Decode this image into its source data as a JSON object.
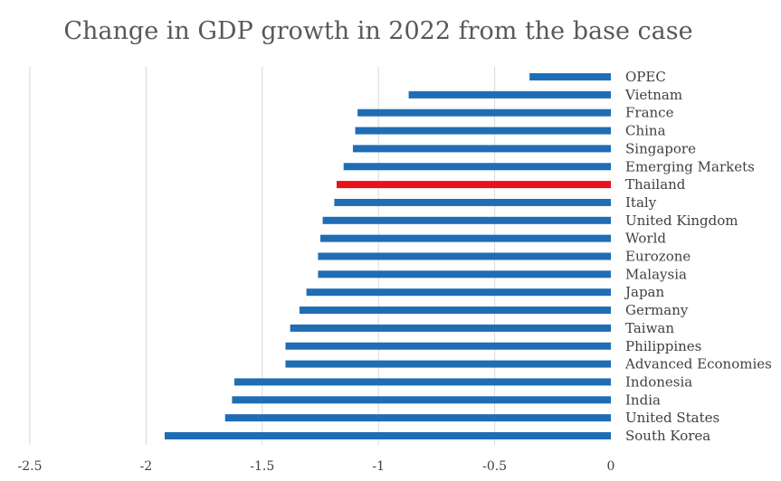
{
  "chart_data": {
    "type": "bar",
    "orientation": "horizontal",
    "title": "Change in GDP growth in 2022 from the base case",
    "xlabel": "",
    "ylabel": "",
    "xlim": [
      -2.5,
      0
    ],
    "x_ticks": [
      "-2.5",
      "-2",
      "-1.5",
      "-1",
      "-0.5",
      "0"
    ],
    "x_tick_values": [
      -2.5,
      -2,
      -1.5,
      -1,
      -0.5,
      0
    ],
    "grid": "vertical",
    "legend": "none",
    "categories": [
      "OPEC",
      "Vietnam",
      "France",
      "China",
      "Singapore",
      "Emerging Markets",
      "Thailand",
      "Italy",
      "United Kingdom",
      "World",
      "Eurozone",
      "Malaysia",
      "Japan",
      "Germany",
      "Taiwan",
      "Philippines",
      "Advanced Economies",
      "Indonesia",
      "India",
      "United States",
      "South Korea"
    ],
    "values": [
      -0.35,
      -0.87,
      -1.09,
      -1.1,
      -1.11,
      -1.15,
      -1.18,
      -1.19,
      -1.24,
      -1.25,
      -1.26,
      -1.26,
      -1.31,
      -1.34,
      -1.38,
      -1.4,
      -1.4,
      -1.62,
      -1.63,
      -1.66,
      -1.92
    ],
    "colors": {
      "default": "#1f6db5",
      "highlight": "#e8121b",
      "highlight_category": "Thailand",
      "grid": "#d9d9d9",
      "title": "#595959",
      "text": "#404040"
    }
  }
}
